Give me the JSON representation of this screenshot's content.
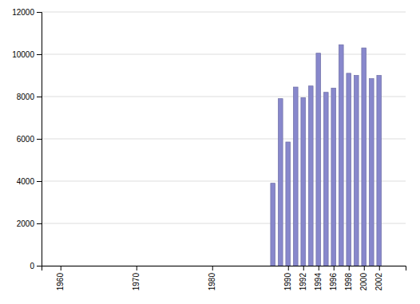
{
  "chart_data": {
    "type": "bar",
    "x": [
      1988,
      1989,
      1990,
      1991,
      1992,
      1993,
      1994,
      1995,
      1996,
      1997,
      1998,
      1999,
      2000,
      2001,
      2002
    ],
    "values": [
      3900,
      7900,
      5850,
      8450,
      7950,
      8500,
      10050,
      8200,
      8400,
      10450,
      9100,
      9000,
      10300,
      8850,
      9000
    ],
    "color": "#8888cc",
    "xlim": [
      1957.5,
      2005.5
    ],
    "xticks": [
      1960,
      1970,
      1980,
      1990,
      1992,
      1994,
      1996,
      1998,
      2000,
      2002
    ],
    "ylim": [
      0,
      12000
    ],
    "yticks": [
      0,
      2000,
      4000,
      6000,
      8000,
      10000,
      12000
    ],
    "grid": true
  }
}
